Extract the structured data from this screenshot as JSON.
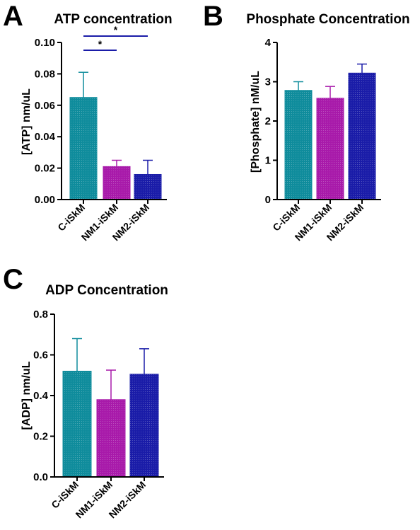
{
  "colors": {
    "c_iskm": "#0f8c9c",
    "nm1_iskm": "#a81aaa",
    "nm2_iskm": "#1a1ca8",
    "axis": "#000000"
  },
  "chart_data": [
    {
      "panel": "A",
      "type": "bar",
      "title": "ATP concentration",
      "xlabel": "",
      "ylabel": "[ATP] nm/uL",
      "categories": [
        "C-iSkM",
        "NM1-iSkM",
        "NM2-iSkM"
      ],
      "values": [
        0.065,
        0.021,
        0.016
      ],
      "errors": [
        0.016,
        0.004,
        0.009
      ],
      "ylim": [
        0,
        0.1
      ],
      "yticks": [
        0.0,
        0.02,
        0.04,
        0.06,
        0.08,
        0.1
      ],
      "ytick_labels": [
        "0.00",
        "0.02",
        "0.04",
        "0.06",
        "0.08",
        "0.10"
      ],
      "significance": [
        {
          "from": "C-iSkM",
          "to": "NM1-iSkM",
          "label": "*"
        },
        {
          "from": "C-iSkM",
          "to": "NM2-iSkM",
          "label": "*"
        }
      ]
    },
    {
      "panel": "B",
      "type": "bar",
      "title": "Phosphate Concentration",
      "xlabel": "",
      "ylabel": "[Phosphate] nM/uL",
      "categories": [
        "C-iSkM",
        "NM1-iSkM",
        "NM2-iSkM"
      ],
      "values": [
        2.78,
        2.58,
        3.22
      ],
      "errors": [
        0.22,
        0.3,
        0.23
      ],
      "ylim": [
        0,
        4
      ],
      "yticks": [
        0,
        1,
        2,
        3,
        4
      ],
      "ytick_labels": [
        "0",
        "1",
        "2",
        "3",
        "4"
      ],
      "significance": []
    },
    {
      "panel": "C",
      "type": "bar",
      "title": "ADP Concentration",
      "xlabel": "",
      "ylabel": "[ADP] nm/uL",
      "categories": [
        "C-iSkM",
        "NM1-iSkM",
        "NM2-iSkM"
      ],
      "values": [
        0.52,
        0.38,
        0.505
      ],
      "errors": [
        0.16,
        0.145,
        0.125
      ],
      "ylim": [
        0,
        0.8
      ],
      "yticks": [
        0.0,
        0.2,
        0.4,
        0.6,
        0.8
      ],
      "ytick_labels": [
        "0.0",
        "0.2",
        "0.4",
        "0.6",
        "0.8"
      ],
      "significance": []
    }
  ]
}
